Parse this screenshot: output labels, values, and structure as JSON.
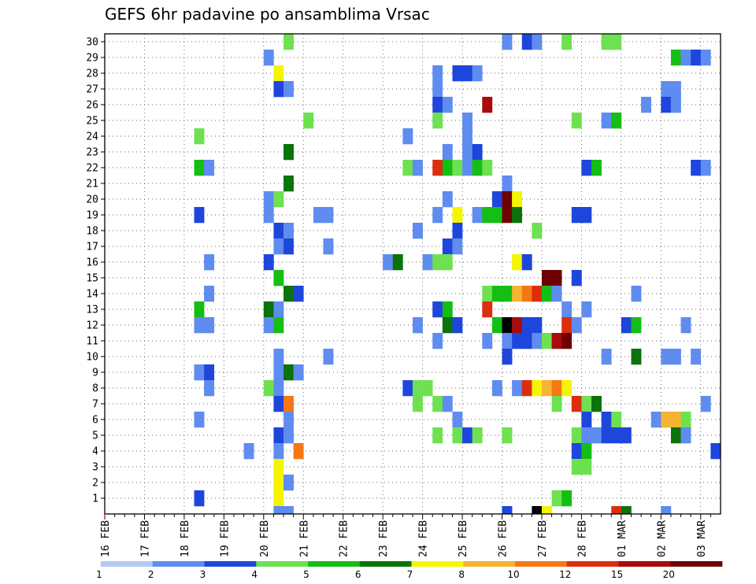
{
  "chart_data": {
    "type": "heatmap",
    "title": "GEFS 6hr padavine po ansamblima Vrsac",
    "xlabel": "",
    "ylabel": "",
    "x_start_label": "16 FEB",
    "x_tick_labels": [
      "16 FEB",
      "17 FEB",
      "18 FEB",
      "19 FEB",
      "20 FEB",
      "21 FEB",
      "22 FEB",
      "23 FEB",
      "24 FEB",
      "25 FEB",
      "26 FEB",
      "27 FEB",
      "28 FEB",
      "01 MAR",
      "02 MAR",
      "03 MAR"
    ],
    "x_unit": "6h step (4 steps per day, step 0 = 16 FEB 00z)",
    "y_tick_labels": [
      "1",
      "2",
      "3",
      "4",
      "5",
      "6",
      "7",
      "8",
      "9",
      "10",
      "11",
      "12",
      "13",
      "14",
      "15",
      "16",
      "17",
      "18",
      "19",
      "20",
      "21",
      "22",
      "23",
      "24",
      "25",
      "26",
      "27",
      "28",
      "29",
      "30"
    ],
    "xlim": [
      0,
      61
    ],
    "ylim": [
      0,
      30
    ],
    "grid": true,
    "colorbar": {
      "labels": [
        "1",
        "2",
        "3",
        "4",
        "5",
        "6",
        "7",
        "8",
        "10",
        "12",
        "15",
        "20"
      ],
      "colors": [
        "#b4c8f5",
        "#5f8cf0",
        "#1e46dc",
        "#6ee150",
        "#14be14",
        "#0a730a",
        "#f5f500",
        "#f5b432",
        "#f57814",
        "#dc2d0f",
        "#aa0a0a",
        "#6e0000"
      ]
    },
    "points": [
      [
        18,
        30,
        3
      ],
      [
        40,
        30,
        1
      ],
      [
        42,
        30,
        2
      ],
      [
        43,
        30,
        1
      ],
      [
        46,
        30,
        3
      ],
      [
        50,
        30,
        3
      ],
      [
        51,
        30,
        3
      ],
      [
        16,
        29,
        1
      ],
      [
        57,
        29,
        4
      ],
      [
        58,
        29,
        1
      ],
      [
        59,
        29,
        2
      ],
      [
        60,
        29,
        1
      ],
      [
        17,
        28,
        6
      ],
      [
        33,
        28,
        1
      ],
      [
        35,
        28,
        2
      ],
      [
        36,
        28,
        2
      ],
      [
        37,
        28,
        1
      ],
      [
        17,
        27,
        2
      ],
      [
        18,
        27,
        1
      ],
      [
        33,
        27,
        1
      ],
      [
        56,
        27,
        1
      ],
      [
        57,
        27,
        1
      ],
      [
        33,
        26,
        2
      ],
      [
        34,
        26,
        1
      ],
      [
        38,
        26,
        10
      ],
      [
        54,
        26,
        1
      ],
      [
        56,
        26,
        2
      ],
      [
        57,
        26,
        1
      ],
      [
        20,
        25,
        3
      ],
      [
        33,
        25,
        3
      ],
      [
        36,
        25,
        1
      ],
      [
        47,
        25,
        3
      ],
      [
        50,
        25,
        1
      ],
      [
        51,
        25,
        4
      ],
      [
        9,
        24,
        3
      ],
      [
        30,
        24,
        1
      ],
      [
        36,
        24,
        1
      ],
      [
        18,
        23,
        5
      ],
      [
        34,
        23,
        1
      ],
      [
        36,
        23,
        1
      ],
      [
        37,
        23,
        2
      ],
      [
        9,
        22,
        4
      ],
      [
        10,
        22,
        1
      ],
      [
        30,
        22,
        3
      ],
      [
        31,
        22,
        1
      ],
      [
        33,
        22,
        9
      ],
      [
        34,
        22,
        4
      ],
      [
        35,
        22,
        3
      ],
      [
        36,
        22,
        1
      ],
      [
        37,
        22,
        4
      ],
      [
        38,
        22,
        3
      ],
      [
        48,
        22,
        2
      ],
      [
        49,
        22,
        4
      ],
      [
        59,
        22,
        2
      ],
      [
        60,
        22,
        1
      ],
      [
        18,
        21,
        5
      ],
      [
        40,
        21,
        1
      ],
      [
        16,
        20,
        1
      ],
      [
        17,
        20,
        3
      ],
      [
        34,
        20,
        1
      ],
      [
        39,
        20,
        2
      ],
      [
        40,
        20,
        11
      ],
      [
        41,
        20,
        6
      ],
      [
        9,
        19,
        2
      ],
      [
        16,
        19,
        1
      ],
      [
        21,
        19,
        1
      ],
      [
        22,
        19,
        1
      ],
      [
        33,
        19,
        1
      ],
      [
        35,
        19,
        6
      ],
      [
        37,
        19,
        1
      ],
      [
        38,
        19,
        4
      ],
      [
        39,
        19,
        4
      ],
      [
        40,
        19,
        11
      ],
      [
        41,
        19,
        5
      ],
      [
        47,
        19,
        2
      ],
      [
        48,
        19,
        2
      ],
      [
        17,
        18,
        2
      ],
      [
        18,
        18,
        1
      ],
      [
        31,
        18,
        1
      ],
      [
        35,
        18,
        2
      ],
      [
        43,
        18,
        3
      ],
      [
        17,
        17,
        1
      ],
      [
        18,
        17,
        2
      ],
      [
        22,
        17,
        1
      ],
      [
        34,
        17,
        2
      ],
      [
        35,
        17,
        1
      ],
      [
        10,
        16,
        1
      ],
      [
        16,
        16,
        2
      ],
      [
        28,
        16,
        1
      ],
      [
        29,
        16,
        5
      ],
      [
        32,
        16,
        1
      ],
      [
        33,
        16,
        3
      ],
      [
        34,
        16,
        3
      ],
      [
        41,
        16,
        6
      ],
      [
        42,
        16,
        2
      ],
      [
        17,
        15,
        4
      ],
      [
        44,
        15,
        11
      ],
      [
        45,
        15,
        11
      ],
      [
        47,
        15,
        2
      ],
      [
        10,
        14,
        1
      ],
      [
        18,
        14,
        5
      ],
      [
        19,
        14,
        2
      ],
      [
        38,
        14,
        3
      ],
      [
        39,
        14,
        4
      ],
      [
        40,
        14,
        4
      ],
      [
        41,
        14,
        7
      ],
      [
        42,
        14,
        8
      ],
      [
        43,
        14,
        9
      ],
      [
        44,
        14,
        4
      ],
      [
        45,
        14,
        1
      ],
      [
        53,
        14,
        1
      ],
      [
        9,
        13,
        4
      ],
      [
        16,
        13,
        5
      ],
      [
        17,
        13,
        1
      ],
      [
        33,
        13,
        2
      ],
      [
        34,
        13,
        4
      ],
      [
        38,
        13,
        9
      ],
      [
        46,
        13,
        1
      ],
      [
        48,
        13,
        1
      ],
      [
        9,
        12,
        1
      ],
      [
        10,
        12,
        1
      ],
      [
        16,
        12,
        1
      ],
      [
        17,
        12,
        4
      ],
      [
        31,
        12,
        1
      ],
      [
        34,
        12,
        5
      ],
      [
        35,
        12,
        2
      ],
      [
        39,
        12,
        4
      ],
      [
        40,
        12,
        12
      ],
      [
        41,
        12,
        10
      ],
      [
        42,
        12,
        2
      ],
      [
        43,
        12,
        2
      ],
      [
        46,
        12,
        9
      ],
      [
        47,
        12,
        1
      ],
      [
        52,
        12,
        2
      ],
      [
        53,
        12,
        4
      ],
      [
        58,
        12,
        1
      ],
      [
        33,
        11,
        1
      ],
      [
        38,
        11,
        1
      ],
      [
        40,
        11,
        1
      ],
      [
        41,
        11,
        2
      ],
      [
        42,
        11,
        2
      ],
      [
        43,
        11,
        1
      ],
      [
        44,
        11,
        3
      ],
      [
        45,
        11,
        10
      ],
      [
        46,
        11,
        11
      ],
      [
        17,
        10,
        1
      ],
      [
        22,
        10,
        1
      ],
      [
        40,
        10,
        2
      ],
      [
        50,
        10,
        1
      ],
      [
        53,
        10,
        5
      ],
      [
        56,
        10,
        1
      ],
      [
        57,
        10,
        1
      ],
      [
        59,
        10,
        1
      ],
      [
        9,
        9,
        1
      ],
      [
        10,
        9,
        2
      ],
      [
        17,
        9,
        1
      ],
      [
        18,
        9,
        5
      ],
      [
        19,
        9,
        1
      ],
      [
        10,
        8,
        1
      ],
      [
        16,
        8,
        3
      ],
      [
        17,
        8,
        1
      ],
      [
        30,
        8,
        2
      ],
      [
        31,
        8,
        3
      ],
      [
        32,
        8,
        3
      ],
      [
        39,
        8,
        1
      ],
      [
        41,
        8,
        1
      ],
      [
        42,
        8,
        9
      ],
      [
        43,
        8,
        6
      ],
      [
        44,
        8,
        7
      ],
      [
        45,
        8,
        8
      ],
      [
        46,
        8,
        6
      ],
      [
        17,
        7,
        2
      ],
      [
        18,
        7,
        8
      ],
      [
        31,
        7,
        3
      ],
      [
        33,
        7,
        3
      ],
      [
        34,
        7,
        1
      ],
      [
        45,
        7,
        3
      ],
      [
        47,
        7,
        9
      ],
      [
        48,
        7,
        3
      ],
      [
        49,
        7,
        5
      ],
      [
        60,
        7,
        1
      ],
      [
        9,
        6,
        1
      ],
      [
        18,
        6,
        1
      ],
      [
        35,
        6,
        1
      ],
      [
        48,
        6,
        2
      ],
      [
        50,
        6,
        2
      ],
      [
        51,
        6,
        3
      ],
      [
        55,
        6,
        1
      ],
      [
        56,
        6,
        7
      ],
      [
        57,
        6,
        7
      ],
      [
        58,
        6,
        3
      ],
      [
        17,
        5,
        2
      ],
      [
        18,
        5,
        1
      ],
      [
        33,
        5,
        3
      ],
      [
        35,
        5,
        3
      ],
      [
        36,
        5,
        2
      ],
      [
        37,
        5,
        3
      ],
      [
        40,
        5,
        3
      ],
      [
        47,
        5,
        3
      ],
      [
        48,
        5,
        1
      ],
      [
        49,
        5,
        1
      ],
      [
        50,
        5,
        2
      ],
      [
        51,
        5,
        2
      ],
      [
        52,
        5,
        2
      ],
      [
        57,
        5,
        5
      ],
      [
        58,
        5,
        1
      ],
      [
        14,
        4,
        1
      ],
      [
        17,
        4,
        1
      ],
      [
        19,
        4,
        8
      ],
      [
        47,
        4,
        2
      ],
      [
        48,
        4,
        4
      ],
      [
        61,
        4,
        2
      ],
      [
        17,
        3,
        6
      ],
      [
        47,
        3,
        3
      ],
      [
        48,
        3,
        3
      ],
      [
        17,
        2,
        6
      ],
      [
        18,
        2,
        1
      ],
      [
        9,
        1,
        2
      ],
      [
        17,
        1,
        6
      ],
      [
        45,
        1,
        3
      ],
      [
        46,
        1,
        4
      ],
      [
        17,
        0,
        1
      ],
      [
        18,
        0,
        1
      ],
      [
        40,
        0,
        2
      ],
      [
        43,
        0,
        12
      ],
      [
        44,
        0,
        6
      ],
      [
        51,
        0,
        9
      ],
      [
        52,
        0,
        5
      ],
      [
        56,
        0,
        1
      ]
    ]
  }
}
